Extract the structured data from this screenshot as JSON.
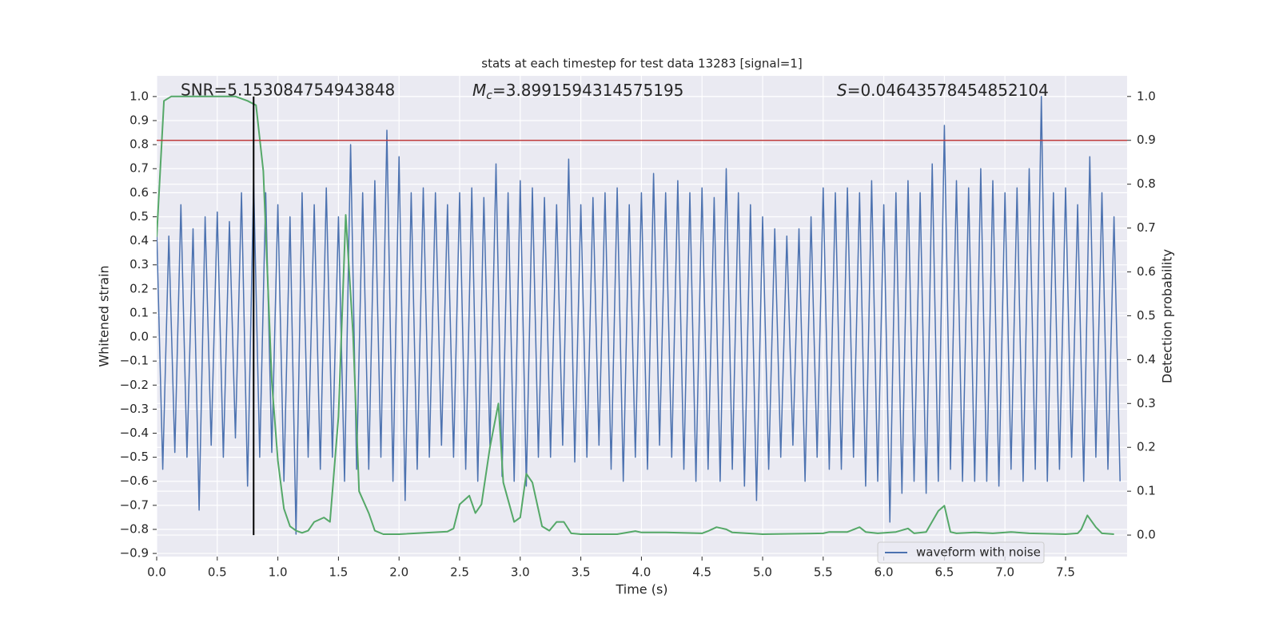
{
  "chart_data": {
    "type": "line",
    "title": "stats at each timestep for test data 13283 [signal=1]",
    "xlabel": "Time (s)",
    "ylabel": "Whitened strain",
    "y2label": "Detection probability",
    "annotations": {
      "snr": "SNR=5.153084754943848",
      "mc": {
        "symbol": "M",
        "subscript": "c",
        "text": "=3.8991594314575195"
      },
      "s": {
        "symbol": "S",
        "text": "=0.04643578454852104"
      }
    },
    "grid": true,
    "legend": "lower right",
    "xlim": [
      0,
      8.008
    ],
    "ylim": [
      -0.913,
      1.086
    ],
    "y2lim": [
      -0.049,
      1.047
    ],
    "xticks": [
      {
        "value": 0,
        "label": "0.0"
      },
      {
        "value": 0.5,
        "label": "0.5"
      },
      {
        "value": 1,
        "label": "1.0"
      },
      {
        "value": 1.5,
        "label": "1.5"
      },
      {
        "value": 2,
        "label": "2.0"
      },
      {
        "value": 2.5,
        "label": "2.5"
      },
      {
        "value": 3,
        "label": "3.0"
      },
      {
        "value": 3.5,
        "label": "3.5"
      },
      {
        "value": 4,
        "label": "4.0"
      },
      {
        "value": 4.5,
        "label": "4.5"
      },
      {
        "value": 5,
        "label": "5.0"
      },
      {
        "value": 5.5,
        "label": "5.5"
      },
      {
        "value": 6,
        "label": "6.0"
      },
      {
        "value": 6.5,
        "label": "6.5"
      },
      {
        "value": 7,
        "label": "7.0"
      },
      {
        "value": 7.5,
        "label": "7.5"
      }
    ],
    "yticks": [
      {
        "value": -0.9,
        "label": "−0.9"
      },
      {
        "value": -0.8,
        "label": "−0.8"
      },
      {
        "value": -0.7,
        "label": "−0.7"
      },
      {
        "value": -0.6,
        "label": "−0.6"
      },
      {
        "value": -0.5,
        "label": "−0.5"
      },
      {
        "value": -0.4,
        "label": "−0.4"
      },
      {
        "value": -0.3,
        "label": "−0.3"
      },
      {
        "value": -0.2,
        "label": "−0.2"
      },
      {
        "value": -0.1,
        "label": "−0.1"
      },
      {
        "value": 0,
        "label": "0.0"
      },
      {
        "value": 0.1,
        "label": "0.1"
      },
      {
        "value": 0.2,
        "label": "0.2"
      },
      {
        "value": 0.3,
        "label": "0.3"
      },
      {
        "value": 0.4,
        "label": "0.4"
      },
      {
        "value": 0.5,
        "label": "0.5"
      },
      {
        "value": 0.6,
        "label": "0.6"
      },
      {
        "value": 0.7,
        "label": "0.7"
      },
      {
        "value": 0.8,
        "label": "0.8"
      },
      {
        "value": 0.9,
        "label": "0.9"
      },
      {
        "value": 1,
        "label": "1.0"
      }
    ],
    "y2ticks": [
      {
        "value": 0,
        "label": "0.0"
      },
      {
        "value": 0.1,
        "label": "0.1"
      },
      {
        "value": 0.2,
        "label": "0.2"
      },
      {
        "value": 0.3,
        "label": "0.3"
      },
      {
        "value": 0.4,
        "label": "0.4"
      },
      {
        "value": 0.5,
        "label": "0.5"
      },
      {
        "value": 0.6,
        "label": "0.6"
      },
      {
        "value": 0.7,
        "label": "0.7"
      },
      {
        "value": 0.8,
        "label": "0.8"
      },
      {
        "value": 0.9,
        "label": "0.9"
      },
      {
        "value": 1,
        "label": "1.0"
      }
    ],
    "threshold": {
      "value": 0.9,
      "axis": "y2",
      "color": "#c03d3e"
    },
    "marker_x": {
      "value": 0.8,
      "color": "#000000"
    },
    "series": [
      {
        "name": "waveform with noise",
        "color": "#4c72b0",
        "x": [
          0,
          0.05,
          0.1,
          0.15,
          0.2,
          0.25,
          0.3,
          0.35,
          0.4,
          0.45,
          0.5,
          0.55,
          0.6,
          0.65,
          0.7,
          0.75,
          0.8,
          0.85,
          0.9,
          0.95,
          1,
          1.05,
          1.1,
          1.15,
          1.2,
          1.25,
          1.3,
          1.35,
          1.4,
          1.45,
          1.5,
          1.55,
          1.6,
          1.65,
          1.7,
          1.75,
          1.8,
          1.85,
          1.9,
          1.95,
          2,
          2.05,
          2.1,
          2.15,
          2.2,
          2.25,
          2.3,
          2.35,
          2.4,
          2.45,
          2.5,
          2.55,
          2.6,
          2.65,
          2.7,
          2.75,
          2.8,
          2.85,
          2.9,
          2.95,
          3,
          3.05,
          3.1,
          3.15,
          3.2,
          3.25,
          3.3,
          3.35,
          3.4,
          3.45,
          3.5,
          3.55,
          3.6,
          3.65,
          3.7,
          3.75,
          3.8,
          3.85,
          3.9,
          3.95,
          4,
          4.05,
          4.1,
          4.15,
          4.2,
          4.25,
          4.3,
          4.35,
          4.4,
          4.45,
          4.5,
          4.55,
          4.6,
          4.65,
          4.7,
          4.75,
          4.8,
          4.85,
          4.9,
          4.95,
          5,
          5.05,
          5.1,
          5.15,
          5.2,
          5.25,
          5.3,
          5.35,
          5.4,
          5.45,
          5.5,
          5.55,
          5.6,
          5.65,
          5.7,
          5.75,
          5.8,
          5.85,
          5.9,
          5.95,
          6,
          6.05,
          6.1,
          6.15,
          6.2,
          6.25,
          6.3,
          6.35,
          6.4,
          6.45,
          6.5,
          6.55,
          6.6,
          6.65,
          6.7,
          6.75,
          6.8,
          6.85,
          6.9,
          6.95,
          7,
          7.05,
          7.1,
          7.15,
          7.2,
          7.25,
          7.3,
          7.35,
          7.4,
          7.45,
          7.5,
          7.55,
          7.6,
          7.65,
          7.7,
          7.75,
          7.8,
          7.85,
          7.9,
          7.95
        ],
        "values": [
          0.45,
          -0.55,
          0.42,
          -0.48,
          0.55,
          -0.5,
          0.45,
          -0.72,
          0.5,
          -0.45,
          0.52,
          -0.5,
          0.48,
          -0.42,
          0.6,
          -0.62,
          0.65,
          -0.5,
          0.6,
          -0.48,
          0.55,
          -0.6,
          0.5,
          -0.82,
          0.6,
          -0.5,
          0.55,
          -0.55,
          0.62,
          -0.5,
          0.5,
          -0.6,
          0.8,
          -0.55,
          0.6,
          -0.55,
          0.65,
          -0.5,
          0.86,
          -0.6,
          0.75,
          -0.68,
          0.6,
          -0.55,
          0.62,
          -0.5,
          0.6,
          -0.45,
          0.55,
          -0.5,
          0.6,
          -0.55,
          0.62,
          -0.6,
          0.58,
          -0.45,
          0.72,
          -0.58,
          0.6,
          -0.6,
          0.65,
          -0.62,
          0.62,
          -0.5,
          0.58,
          -0.5,
          0.55,
          -0.45,
          0.74,
          -0.52,
          0.55,
          -0.5,
          0.58,
          -0.45,
          0.6,
          -0.55,
          0.62,
          -0.6,
          0.55,
          -0.5,
          0.6,
          -0.55,
          0.68,
          -0.45,
          0.6,
          -0.5,
          0.65,
          -0.55,
          0.6,
          -0.6,
          0.62,
          -0.55,
          0.58,
          -0.6,
          0.7,
          -0.55,
          0.6,
          -0.62,
          0.55,
          -0.68,
          0.5,
          -0.55,
          0.45,
          -0.5,
          0.42,
          -0.45,
          0.45,
          -0.6,
          0.5,
          -0.5,
          0.62,
          -0.55,
          0.6,
          -0.55,
          0.62,
          -0.5,
          0.6,
          -0.62,
          0.65,
          -0.6,
          0.55,
          -0.77,
          0.6,
          -0.65,
          0.65,
          -0.6,
          0.6,
          -0.65,
          0.72,
          -0.6,
          0.88,
          -0.55,
          0.65,
          -0.6,
          0.62,
          -0.6,
          0.7,
          -0.6,
          0.65,
          -0.62,
          0.6,
          -0.55,
          0.62,
          -0.6,
          0.7,
          -0.55,
          1.0,
          -0.6,
          0.6,
          -0.55,
          0.62,
          -0.5,
          0.55,
          -0.6,
          0.75,
          -0.5,
          0.6,
          -0.55,
          0.5,
          -0.6
        ]
      },
      {
        "color": "#55a868",
        "axis": "y2",
        "x": [
          0,
          0.06,
          0.12,
          0.5,
          0.65,
          0.75,
          0.82,
          0.88,
          0.95,
          1,
          1.05,
          1.1,
          1.15,
          1.2,
          1.25,
          1.3,
          1.38,
          1.43,
          1.5,
          1.56,
          1.62,
          1.67,
          1.75,
          1.8,
          1.87,
          2,
          2.4,
          2.45,
          2.5,
          2.58,
          2.63,
          2.68,
          2.75,
          2.82,
          2.86,
          2.95,
          3,
          3.05,
          3.1,
          3.18,
          3.24,
          3.3,
          3.36,
          3.42,
          3.5,
          3.8,
          3.95,
          4,
          4.2,
          4.5,
          4.55,
          4.62,
          4.7,
          4.75,
          5,
          5.5,
          5.55,
          5.7,
          5.8,
          5.85,
          5.95,
          6.1,
          6.2,
          6.25,
          6.35,
          6.45,
          6.5,
          6.55,
          6.6,
          6.75,
          6.9,
          7.05,
          7.2,
          7.5,
          7.6,
          7.63,
          7.68,
          7.75,
          7.8,
          7.9
        ],
        "values": [
          0.68,
          0.99,
          1.0,
          1.0,
          1.0,
          0.99,
          0.98,
          0.83,
          0.35,
          0.17,
          0.06,
          0.02,
          0.01,
          0.005,
          0.01,
          0.03,
          0.04,
          0.03,
          0.27,
          0.73,
          0.46,
          0.1,
          0.05,
          0.01,
          0.002,
          0.002,
          0.008,
          0.015,
          0.07,
          0.09,
          0.05,
          0.07,
          0.2,
          0.3,
          0.12,
          0.03,
          0.04,
          0.14,
          0.12,
          0.02,
          0.01,
          0.03,
          0.03,
          0.004,
          0.002,
          0.002,
          0.009,
          0.006,
          0.006,
          0.004,
          0.009,
          0.018,
          0.013,
          0.006,
          0.002,
          0.004,
          0.007,
          0.007,
          0.018,
          0.007,
          0.004,
          0.007,
          0.015,
          0.004,
          0.007,
          0.055,
          0.067,
          0.007,
          0.004,
          0.006,
          0.004,
          0.007,
          0.004,
          0.002,
          0.004,
          0.013,
          0.045,
          0.018,
          0.004,
          0.002
        ]
      }
    ]
  }
}
